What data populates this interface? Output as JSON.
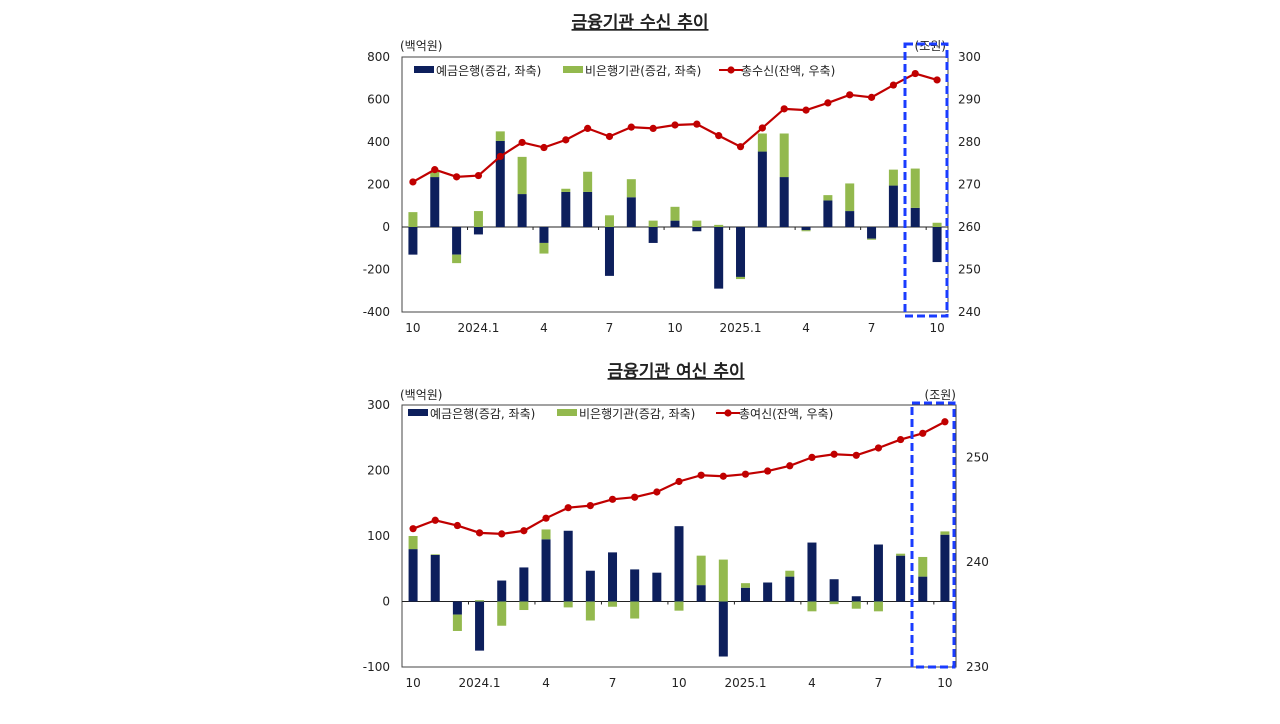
{
  "colors": {
    "deposit_bank": "#0d1f5c",
    "nonbank": "#93b94e",
    "total_line": "#c00000",
    "highlight": "#1a3cff"
  },
  "chart_data": [
    {
      "type": "bar+line",
      "title": "금융기관 수신 추이",
      "left_unit": "(백억원)",
      "right_unit": "(조원)",
      "ylim_left": [
        -400,
        800
      ],
      "yticks_left": [
        800,
        600,
        400,
        200,
        0,
        -200,
        -400
      ],
      "ylim_right": [
        240,
        300
      ],
      "yticks_right": [
        300,
        290,
        280,
        270,
        260,
        250,
        240
      ],
      "x_tick_labels": [
        "10",
        "",
        "",
        "2024.1",
        "",
        "",
        "4",
        "",
        "",
        "7",
        "",
        "",
        "10",
        "",
        "",
        "2025.1",
        "",
        "",
        "4",
        "",
        "",
        "7",
        "",
        "",
        "10"
      ],
      "legend_position": "top-left",
      "highlight_last_n": 2,
      "series": [
        {
          "name": "예금은행(증감, 좌축)",
          "kind": "stacked-bar",
          "axis": "left",
          "values": [
            -130,
            235,
            -130,
            -35,
            405,
            155,
            -75,
            165,
            165,
            -230,
            140,
            -75,
            30,
            -20,
            -290,
            -235,
            355,
            235,
            -15,
            125,
            75,
            -55,
            195,
            90,
            -165
          ]
        },
        {
          "name": "비은행기관(증감, 좌축)",
          "kind": "stacked-bar",
          "axis": "left",
          "values": [
            70,
            25,
            -40,
            75,
            45,
            175,
            -50,
            15,
            95,
            55,
            85,
            30,
            65,
            30,
            10,
            -10,
            85,
            205,
            -5,
            25,
            130,
            -5,
            75,
            185,
            20
          ]
        },
        {
          "name": "총수신(잔액, 우축)",
          "kind": "line",
          "axis": "right",
          "values": [
            270.6,
            273.5,
            271.8,
            272.1,
            276.6,
            279.9,
            278.7,
            280.5,
            283.2,
            281.3,
            283.5,
            283.2,
            284.0,
            284.2,
            281.5,
            278.9,
            283.3,
            287.8,
            287.5,
            289.2,
            291.1,
            290.5,
            293.4,
            296.1,
            294.6
          ]
        }
      ]
    },
    {
      "type": "bar+line",
      "title": "금융기관 여신 추이",
      "left_unit": "(백억원)",
      "right_unit": "(조원)",
      "ylim_left": [
        -100,
        300
      ],
      "yticks_left": [
        300,
        200,
        100,
        0,
        -100
      ],
      "ylim_right": [
        230,
        255
      ],
      "yticks_right": [
        250,
        240,
        230
      ],
      "x_tick_labels": [
        "10",
        "",
        "",
        "2024.1",
        "",
        "",
        "4",
        "",
        "",
        "7",
        "",
        "",
        "10",
        "",
        "",
        "2025.1",
        "",
        "",
        "4",
        "",
        "",
        "7",
        "",
        "",
        "10"
      ],
      "legend_position": "top-left",
      "highlight_last_n": 2,
      "series": [
        {
          "name": "예금은행(증감, 좌축)",
          "kind": "stacked-bar",
          "axis": "left",
          "values": [
            80,
            71,
            -20,
            -75,
            32,
            52,
            95,
            108,
            47,
            75,
            49,
            44,
            115,
            25,
            -84,
            21,
            29,
            38,
            90,
            34,
            8,
            87,
            70,
            38,
            102
          ]
        },
        {
          "name": "비은행기관(증감, 좌축)",
          "kind": "stacked-bar",
          "axis": "left",
          "values": [
            20,
            1,
            -25,
            2,
            -37,
            -13,
            15,
            -9,
            -29,
            -8,
            -26,
            0,
            -14,
            45,
            64,
            7,
            0,
            9,
            -15,
            -4,
            -11,
            -15,
            3,
            30,
            5
          ]
        },
        {
          "name": "총여신(잔액, 우축)",
          "kind": "line",
          "axis": "right",
          "values": [
            243.2,
            244.0,
            243.5,
            242.8,
            242.7,
            243.0,
            244.2,
            245.2,
            245.4,
            246.0,
            246.2,
            246.7,
            247.7,
            248.3,
            248.2,
            248.4,
            248.7,
            249.2,
            250.0,
            250.3,
            250.2,
            250.9,
            251.7,
            252.3,
            253.4
          ]
        }
      ]
    }
  ]
}
